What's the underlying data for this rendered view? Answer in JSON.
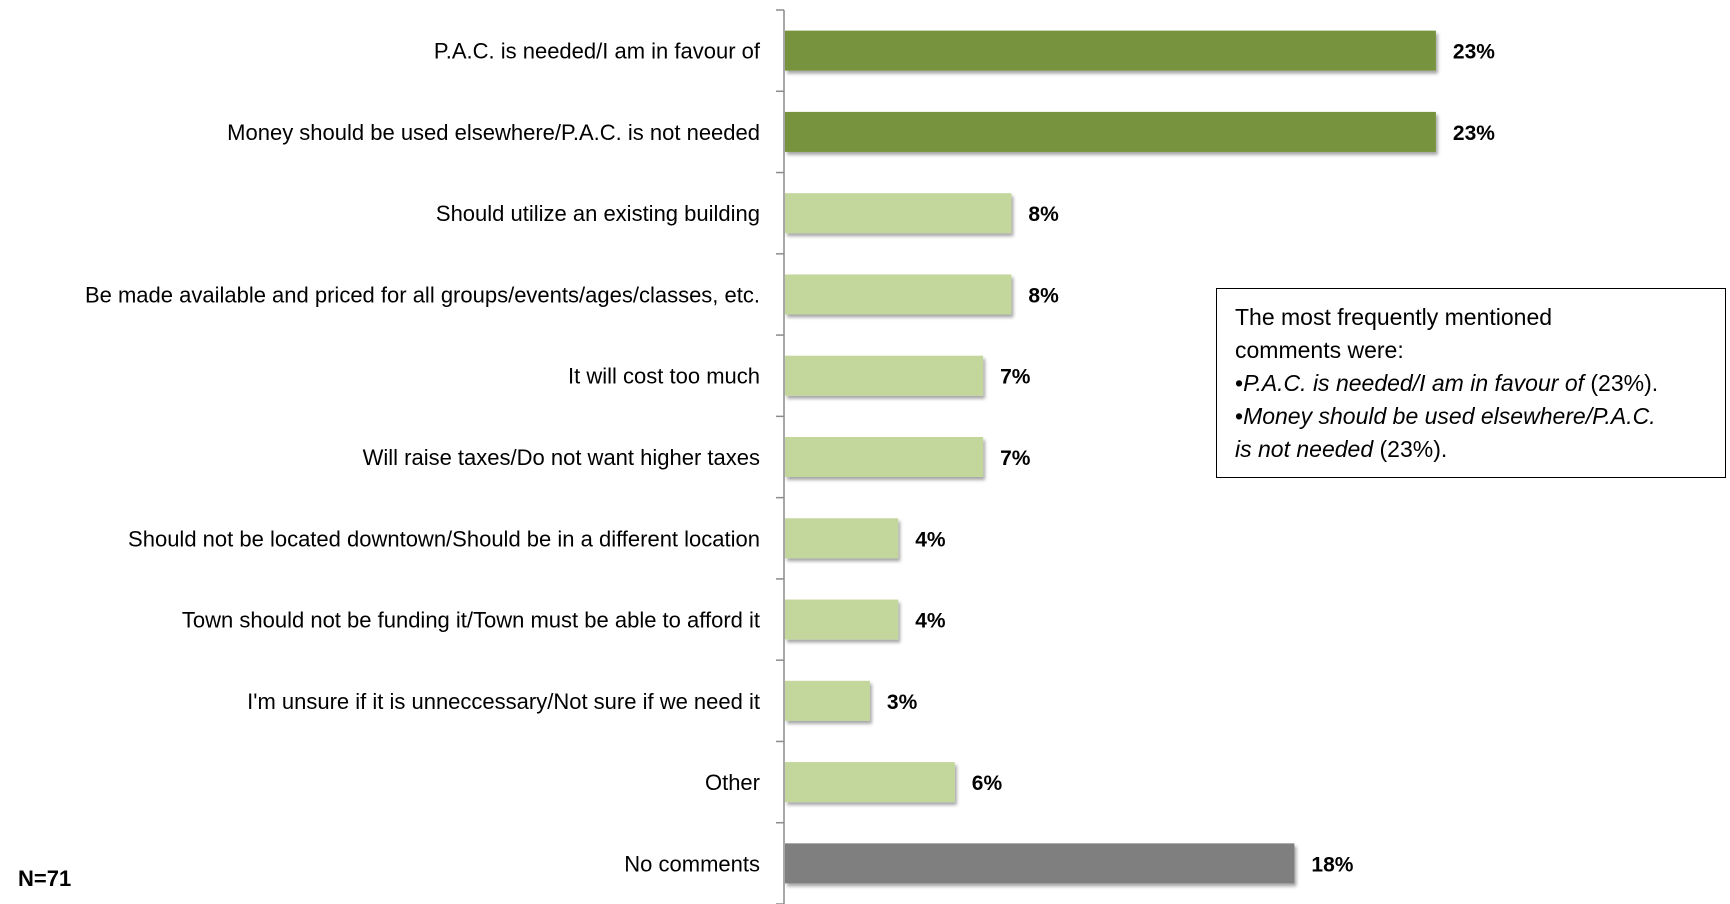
{
  "chart_data": {
    "type": "bar",
    "orientation": "horizontal",
    "categories": [
      "P.A.C. is needed/I am in favour of",
      "Money should be used elsewhere/P.A.C. is not needed",
      "Should utilize an existing building",
      "Be made available and priced for all groups/events/ages/classes, etc.",
      "It will cost too much",
      "Will raise taxes/Do not want higher taxes",
      "Should not be located downtown/Should be in a different location",
      "Town should not be funding it/Town must be able to afford it",
      "I'm unsure if it is unneccessary/Not sure if we need it",
      "Other",
      "No comments"
    ],
    "values": [
      23,
      23,
      8,
      8,
      7,
      7,
      4,
      4,
      3,
      6,
      18
    ],
    "value_labels": [
      "23%",
      "23%",
      "8%",
      "8%",
      "7%",
      "7%",
      "4%",
      "4%",
      "3%",
      "6%",
      "18%"
    ],
    "bar_colors": [
      "#77933c",
      "#77933c",
      "#c3d69b",
      "#c3d69b",
      "#c3d69b",
      "#c3d69b",
      "#c3d69b",
      "#c3d69b",
      "#c3d69b",
      "#c3d69b",
      "#7f7f7f"
    ],
    "xlim": [
      0,
      25
    ],
    "grid": false,
    "title": "",
    "xlabel": "",
    "ylabel": ""
  },
  "callout": {
    "intro_line1": "The most frequently mentioned",
    "intro_line2": "comments were:",
    "item1_text": "P.A.C. is needed/I am in favour of",
    "item1_suffix": " (23%).",
    "item2_text_a": "Money should be used elsewhere/P.A.C.",
    "item2_text_b": "is not needed",
    "item2_suffix": " (23%).",
    "bullet": "•"
  },
  "sample_size": "N=71"
}
